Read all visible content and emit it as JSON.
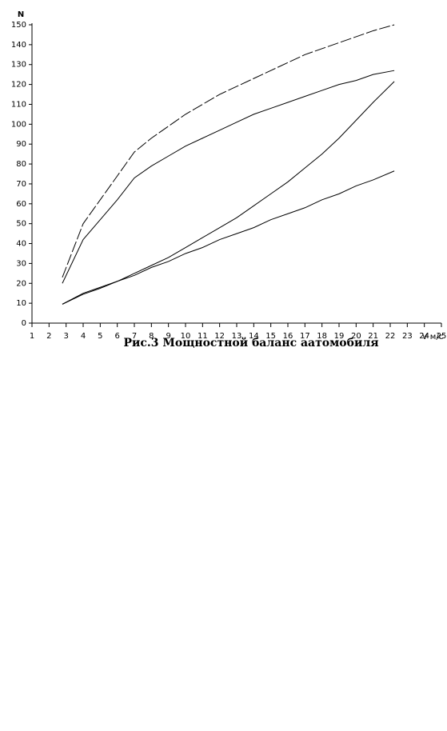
{
  "chart_data": {
    "type": "line",
    "y_label": "N",
    "x_label": "V м/с",
    "caption": "Рис.3 Мощностной баланс аатомобиля",
    "x": [
      2.78,
      4,
      5,
      6,
      7,
      8,
      9,
      10,
      11,
      12,
      13,
      14,
      15,
      16,
      17,
      18,
      19,
      20,
      21,
      22.24
    ],
    "series": [
      {
        "color": "#000000",
        "dashed": true,
        "values": [
          23,
          50,
          62,
          74,
          86,
          93,
          99,
          105,
          110,
          115,
          119,
          123,
          127,
          131,
          135,
          138,
          141,
          144,
          147,
          150
        ]
      },
      {
        "color": "#000000",
        "dashed": false,
        "values": [
          20,
          42,
          52,
          62,
          73,
          79,
          84,
          89,
          93,
          97,
          101,
          105,
          108,
          111,
          114,
          117,
          120,
          122,
          125,
          127
        ]
      },
      {
        "color": "#000000",
        "dashed": false,
        "values": [
          9.5,
          15,
          18,
          21,
          25,
          29,
          33,
          38,
          43,
          48,
          53,
          59,
          65,
          71,
          78,
          85,
          93,
          102,
          111,
          121.5
        ]
      },
      {
        "color": "#000000",
        "dashed": false,
        "values": [
          9.5,
          14.5,
          17.5,
          21,
          24,
          28,
          31,
          35,
          38,
          42,
          45,
          48,
          52,
          55,
          58,
          62,
          65,
          69,
          72,
          76.5
        ]
      }
    ],
    "xlim": [
      1,
      25
    ],
    "xticks": [
      1,
      2,
      3,
      4,
      5,
      6,
      7,
      8,
      9,
      10,
      11,
      12,
      13,
      14,
      15,
      16,
      17,
      18,
      19,
      20,
      21,
      22,
      23,
      24,
      25
    ],
    "ylim": [
      0,
      150
    ],
    "yticks": [
      0,
      10,
      20,
      30,
      40,
      50,
      60,
      70,
      80,
      90,
      100,
      110,
      120,
      130,
      140,
      150
    ],
    "grid": false
  }
}
